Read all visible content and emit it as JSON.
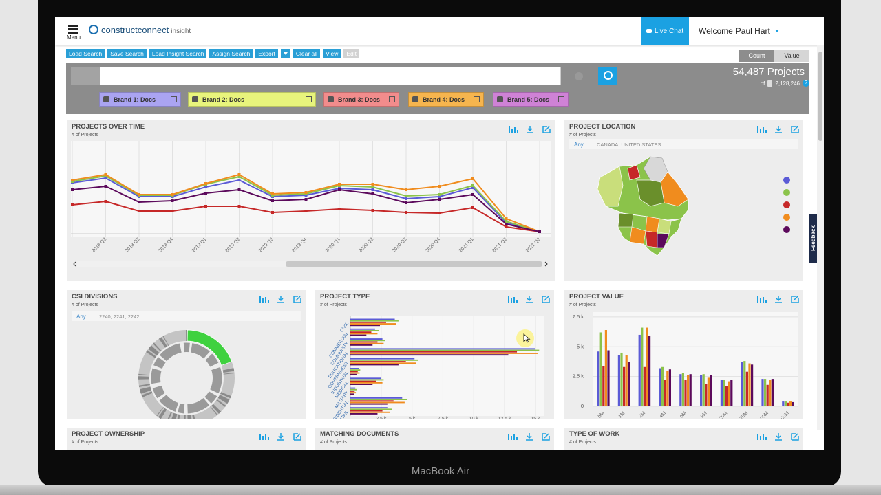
{
  "device_label": "MacBook Air",
  "header": {
    "menu": "Menu",
    "logo": "constructconnect",
    "logo_suffix": "insight",
    "live_chat": "Live Chat",
    "welcome": "Welcome",
    "user": "Paul Hart"
  },
  "toolbar": [
    "Load Search",
    "Save Search",
    "Load Insight Search",
    "Assign Search",
    "Export",
    "Clear all",
    "View",
    "Edit"
  ],
  "toggle": [
    "Count",
    "Value"
  ],
  "summary": {
    "projects": "54,487 Projects",
    "of": "of",
    "total": "2,128,246",
    "help": "?"
  },
  "brands": [
    {
      "name": "Brand 1: Docs",
      "color": "#aaa4f2"
    },
    {
      "name": "Brand 2: Docs",
      "color": "#e8f47c"
    },
    {
      "name": "Brand 3: Docs",
      "color": "#f28c8c"
    },
    {
      "name": "Brand 4: Docs",
      "color": "#f6b54e"
    },
    {
      "name": "Brand 5: Docs",
      "color": "#cf82d6"
    }
  ],
  "feedback": "Feedback",
  "panels": [
    {
      "title": "PROJECTS OVER TIME",
      "subtitle": "# of Projects"
    },
    {
      "title": "PROJECT LOCATION",
      "subtitle": "# of Projects"
    },
    {
      "title": "CSI DIVISIONS",
      "subtitle": "# of Projects"
    },
    {
      "title": "PROJECT TYPE",
      "subtitle": "# of Projects"
    },
    {
      "title": "PROJECT VALUE",
      "subtitle": "# of Projects"
    },
    {
      "title": "PROJECT OWNERSHIP",
      "subtitle": "# of Projects"
    },
    {
      "title": "MATCHING DOCUMENTS",
      "subtitle": "# of Projects"
    },
    {
      "title": "TYPE OF WORK",
      "subtitle": "# of Projects"
    }
  ],
  "location": {
    "filter_any": "Any",
    "filter": "CANADA, UNITED STATES"
  },
  "csi": {
    "filter_any": "Any",
    "filter": "2240, 2241, 2242"
  },
  "chart_data": [
    {
      "type": "line",
      "categories": [
        null,
        "2018 Q2",
        "2018 Q3",
        "2018 Q4",
        "2019 Q1",
        "2019 Q2",
        "2019 Q3",
        "2019 Q4",
        "2020 Q1",
        "2020 Q2",
        "2020 Q3",
        "2020 Q4",
        "2021 Q1",
        "2021 Q2",
        "2021 Q3"
      ],
      "ylim": [
        0,
        130
      ],
      "grid": true,
      "series": [
        {
          "color": "#5b5bd6",
          "values": [
            72,
            79,
            52,
            52,
            66,
            76,
            52,
            54,
            64,
            62,
            49,
            52,
            65,
            14,
            1
          ]
        },
        {
          "color": "#8bc34a",
          "values": [
            74,
            82,
            54,
            54,
            70,
            81,
            54,
            56,
            68,
            66,
            53,
            55,
            68,
            16,
            1
          ]
        },
        {
          "color": "#c62828",
          "values": [
            40,
            45,
            31,
            31,
            38,
            38,
            29,
            31,
            34,
            32,
            29,
            28,
            36,
            8,
            1
          ]
        },
        {
          "color": "#f08c1e",
          "values": [
            76,
            84,
            55,
            55,
            71,
            84,
            56,
            58,
            70,
            70,
            62,
            67,
            78,
            20,
            1
          ]
        },
        {
          "color": "#5c0a5c",
          "values": [
            62,
            67,
            44,
            46,
            57,
            62,
            46,
            48,
            62,
            56,
            43,
            48,
            55,
            12,
            1
          ]
        }
      ]
    },
    {
      "type": "hbar",
      "categories": [
        "CIVIL",
        "COMMERCIAL",
        "COMMUNITY",
        "EDUCATIONAL",
        "GOVERNMENT",
        "INDUSTRIAL",
        "MEDICAL",
        "MILITARY",
        "RESIDENTIAL",
        "RETAIL"
      ],
      "xlim": [
        0,
        15700
      ],
      "xticks": [
        {
          "value": 2500,
          "label": "2.5 k"
        },
        {
          "value": 5000,
          "label": "5 k"
        },
        {
          "value": 7500,
          "label": "7.5 k"
        },
        {
          "value": 10000,
          "label": "10 k"
        },
        {
          "value": 12500,
          "label": "12.5 k"
        },
        {
          "value": 15000,
          "label": "15 k"
        }
      ],
      "grid": true,
      "series": [
        {
          "color": "#5b5bd6",
          "values": [
            3600,
            2000,
            2600,
            15000,
            5200,
            700,
            2500,
            400,
            4200,
            3000
          ]
        },
        {
          "color": "#8bc34a",
          "values": [
            3900,
            2300,
            2800,
            15300,
            5500,
            800,
            2700,
            500,
            4600,
            3400
          ]
        },
        {
          "color": "#c62828",
          "values": [
            2900,
            1700,
            2200,
            13500,
            4500,
            600,
            2100,
            350,
            3500,
            2600
          ]
        },
        {
          "color": "#f08c1e",
          "values": [
            3700,
            2200,
            2700,
            15200,
            5300,
            750,
            2600,
            450,
            4400,
            3200
          ]
        },
        {
          "color": "#5c0a5c",
          "values": [
            2400,
            1300,
            1800,
            12800,
            3900,
            500,
            1800,
            300,
            3000,
            2200
          ]
        }
      ]
    },
    {
      "type": "bar",
      "categories": [
        "5M",
        "1M",
        "2M",
        "4M",
        "6M",
        "9M",
        "20M",
        "20M",
        "00M",
        "00M"
      ],
      "ylim": [
        0,
        7900
      ],
      "yticks": [
        0,
        {
          "value": 2500,
          "label": "2.5 k"
        },
        {
          "value": 5000,
          "label": "5 k"
        },
        {
          "value": 7500,
          "label": "7.5 k"
        }
      ],
      "grid": true,
      "series": [
        {
          "color": "#5b5bd6",
          "values": [
            4600,
            4300,
            6000,
            3200,
            2700,
            2600,
            2200,
            3700,
            2300,
            400
          ]
        },
        {
          "color": "#8bc34a",
          "values": [
            6200,
            4500,
            6600,
            3300,
            2800,
            2700,
            2200,
            3800,
            2300,
            400
          ]
        },
        {
          "color": "#c62828",
          "values": [
            3400,
            3300,
            3300,
            2200,
            2200,
            1900,
            1700,
            2900,
            1800,
            300
          ]
        },
        {
          "color": "#f08c1e",
          "values": [
            6400,
            4300,
            6600,
            3000,
            2600,
            2400,
            2100,
            3600,
            2200,
            400
          ]
        },
        {
          "color": "#5c0a5c",
          "values": [
            4700,
            3700,
            5900,
            3100,
            2700,
            2600,
            2200,
            3500,
            2300,
            350
          ]
        }
      ]
    }
  ]
}
